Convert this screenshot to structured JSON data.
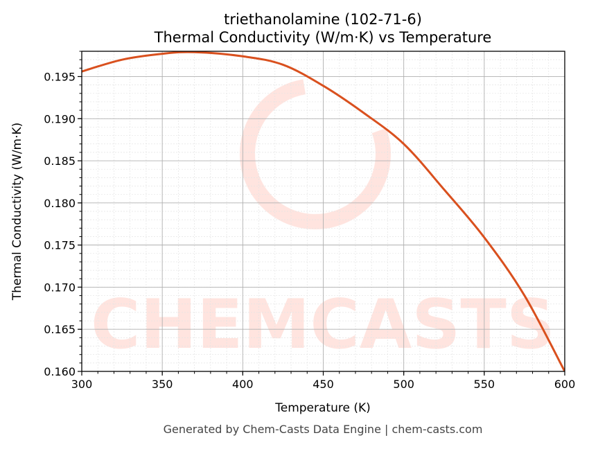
{
  "chart_data": {
    "type": "line",
    "title": "triethanolamine (102-71-6)",
    "subtitle": "Thermal Conductivity (W/m·K) vs Temperature",
    "xlabel": "Temperature (K)",
    "ylabel": "Thermal Conductivity (W/m·K)",
    "xlim": [
      300,
      600
    ],
    "ylim": [
      0.16,
      0.198
    ],
    "xticks": [
      300,
      350,
      400,
      450,
      500,
      550,
      600
    ],
    "yticks": [
      0.16,
      0.165,
      0.17,
      0.175,
      0.18,
      0.185,
      0.19,
      0.195
    ],
    "grid": true,
    "minor_grid": true,
    "line_color": "#d9501e",
    "x": [
      300,
      325,
      350,
      370,
      400,
      425,
      450,
      475,
      500,
      525,
      550,
      575,
      600
    ],
    "y": [
      0.1956,
      0.197,
      0.1977,
      0.1979,
      0.1974,
      0.1964,
      0.1939,
      0.1907,
      0.187,
      0.1816,
      0.1759,
      0.169,
      0.16
    ]
  },
  "watermark": "CHEMCASTS",
  "footer": "Generated by Chem-Casts Data Engine | chem-casts.com"
}
